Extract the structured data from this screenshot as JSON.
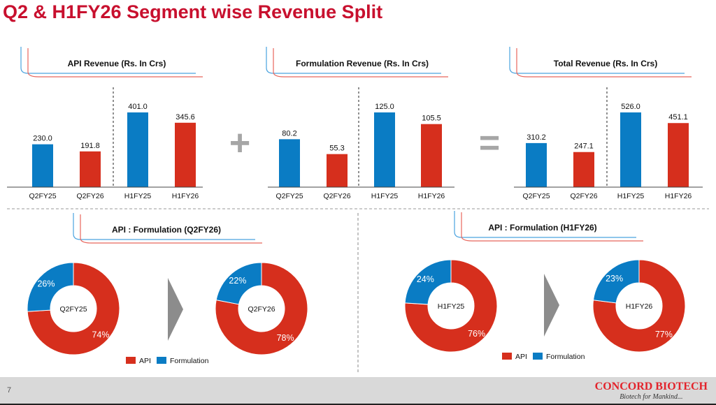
{
  "title": "Q2 & H1FY26 Segment wise Revenue Split",
  "colors": {
    "blue": "#0a7cc4",
    "red": "#d62f1d",
    "title": "#c8102e"
  },
  "operators": {
    "plus": "+",
    "equals": "="
  },
  "chart_data": [
    {
      "type": "bar",
      "title": "API Revenue (Rs. In Crs)",
      "categories": [
        "Q2FY25",
        "Q2FY26",
        "H1FY25",
        "H1FY26"
      ],
      "values": [
        230.0,
        191.8,
        401.0,
        345.6
      ],
      "labels": [
        "230.0",
        "191.8",
        "401.0",
        "345.6"
      ]
    },
    {
      "type": "bar",
      "title": "Formulation Revenue (Rs. In Crs)",
      "categories": [
        "Q2FY25",
        "Q2FY26",
        "H1FY25",
        "H1FY26"
      ],
      "values": [
        80.2,
        55.3,
        125.0,
        105.5
      ],
      "labels": [
        "80.2",
        "55.3",
        "125.0",
        "105.5"
      ]
    },
    {
      "type": "bar",
      "title": "Total Revenue (Rs. In Crs)",
      "categories": [
        "Q2FY25",
        "Q2FY26",
        "H1FY25",
        "H1FY26"
      ],
      "values": [
        310.2,
        247.1,
        526.0,
        451.1
      ],
      "labels": [
        "310.2",
        "247.1",
        "526.0",
        "451.1"
      ]
    },
    {
      "type": "pie",
      "title": "API : Formulation (Q2FY26)",
      "donuts": [
        {
          "center_label": "Q2FY25",
          "slices": [
            {
              "name": "API",
              "value": 74,
              "label": "74%"
            },
            {
              "name": "Formulation",
              "value": 26,
              "label": "26%"
            }
          ]
        },
        {
          "center_label": "Q2FY26",
          "slices": [
            {
              "name": "API",
              "value": 78,
              "label": "78%"
            },
            {
              "name": "Formulation",
              "value": 22,
              "label": "22%"
            }
          ]
        }
      ],
      "legend": [
        "API",
        "Formulation"
      ]
    },
    {
      "type": "pie",
      "title": "API : Formulation (H1FY26)",
      "donuts": [
        {
          "center_label": "H1FY25",
          "slices": [
            {
              "name": "API",
              "value": 76,
              "label": "76%"
            },
            {
              "name": "Formulation",
              "value": 24,
              "label": "24%"
            }
          ]
        },
        {
          "center_label": "H1FY26",
          "slices": [
            {
              "name": "API",
              "value": 77,
              "label": "77%"
            },
            {
              "name": "Formulation",
              "value": 23,
              "label": "23%"
            }
          ]
        }
      ],
      "legend": [
        "API",
        "Formulation"
      ]
    }
  ],
  "footer": {
    "page": "7",
    "brand": "CONCORD BIOTECH",
    "tagline": "Biotech for Mankind..."
  }
}
